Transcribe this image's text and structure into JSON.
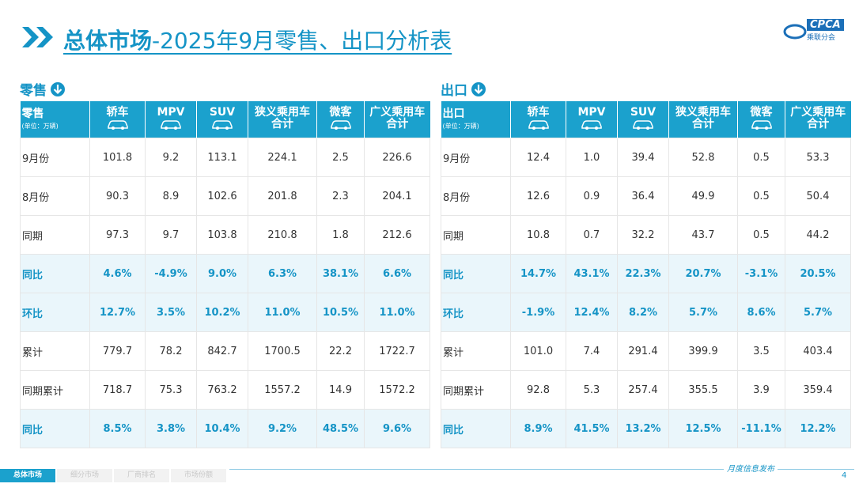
{
  "header": {
    "title_main": "总体市场",
    "title_sub": "-2025年9月零售、出口分析表",
    "logo": "CPCA",
    "logo_sub": "乘联分会"
  },
  "tables": [
    {
      "label": "零售",
      "unit": "(单位：万辆)",
      "columns": [
        "轿车",
        "MPV",
        "SUV",
        "狭义乘用车合计",
        "微客",
        "广义乘用车合计"
      ],
      "rows": [
        {
          "label": "9月份",
          "highlight": false,
          "values": [
            "101.8",
            "9.2",
            "113.1",
            "224.1",
            "2.5",
            "226.6"
          ]
        },
        {
          "label": "8月份",
          "highlight": false,
          "values": [
            "90.3",
            "8.9",
            "102.6",
            "201.8",
            "2.3",
            "204.1"
          ]
        },
        {
          "label": "同期",
          "highlight": false,
          "values": [
            "97.3",
            "9.7",
            "103.8",
            "210.8",
            "1.8",
            "212.6"
          ]
        },
        {
          "label": "同比",
          "highlight": true,
          "values": [
            "4.6%",
            "-4.9%",
            "9.0%",
            "6.3%",
            "38.1%",
            "6.6%"
          ]
        },
        {
          "label": "环比",
          "highlight": true,
          "values": [
            "12.7%",
            "3.5%",
            "10.2%",
            "11.0%",
            "10.5%",
            "11.0%"
          ]
        },
        {
          "label": "累计",
          "highlight": false,
          "values": [
            "779.7",
            "78.2",
            "842.7",
            "1700.5",
            "22.2",
            "1722.7"
          ]
        },
        {
          "label": "同期累计",
          "highlight": false,
          "values": [
            "718.7",
            "75.3",
            "763.2",
            "1557.2",
            "14.9",
            "1572.2"
          ]
        },
        {
          "label": "同比",
          "highlight": true,
          "values": [
            "8.5%",
            "3.8%",
            "10.4%",
            "9.2%",
            "48.5%",
            "9.6%"
          ]
        }
      ]
    },
    {
      "label": "出口",
      "unit": "(单位：万辆)",
      "columns": [
        "轿车",
        "MPV",
        "SUV",
        "狭义乘用车合计",
        "微客",
        "广义乘用车合计"
      ],
      "rows": [
        {
          "label": "9月份",
          "highlight": false,
          "values": [
            "12.4",
            "1.0",
            "39.4",
            "52.8",
            "0.5",
            "53.3"
          ]
        },
        {
          "label": "8月份",
          "highlight": false,
          "values": [
            "12.6",
            "0.9",
            "36.4",
            "49.9",
            "0.5",
            "50.4"
          ]
        },
        {
          "label": "同期",
          "highlight": false,
          "values": [
            "10.8",
            "0.7",
            "32.2",
            "43.7",
            "0.5",
            "44.2"
          ]
        },
        {
          "label": "同比",
          "highlight": true,
          "values": [
            "14.7%",
            "43.1%",
            "22.3%",
            "20.7%",
            "-3.1%",
            "20.5%"
          ]
        },
        {
          "label": "环比",
          "highlight": true,
          "values": [
            "-1.9%",
            "12.4%",
            "8.2%",
            "5.7%",
            "8.6%",
            "5.7%"
          ]
        },
        {
          "label": "累计",
          "highlight": false,
          "values": [
            "101.0",
            "7.4",
            "291.4",
            "399.9",
            "3.5",
            "403.4"
          ]
        },
        {
          "label": "同期累计",
          "highlight": false,
          "values": [
            "92.8",
            "5.3",
            "257.4",
            "355.5",
            "3.9",
            "359.4"
          ]
        },
        {
          "label": "同比",
          "highlight": true,
          "values": [
            "8.9%",
            "41.5%",
            "13.2%",
            "12.5%",
            "-11.1%",
            "12.2%"
          ]
        }
      ]
    }
  ],
  "footer": {
    "tabs": [
      "总体市场",
      "细分市场",
      "厂商排名",
      "市场份额"
    ],
    "active_tab": 0,
    "note": "月度信息发布",
    "page": "4"
  }
}
